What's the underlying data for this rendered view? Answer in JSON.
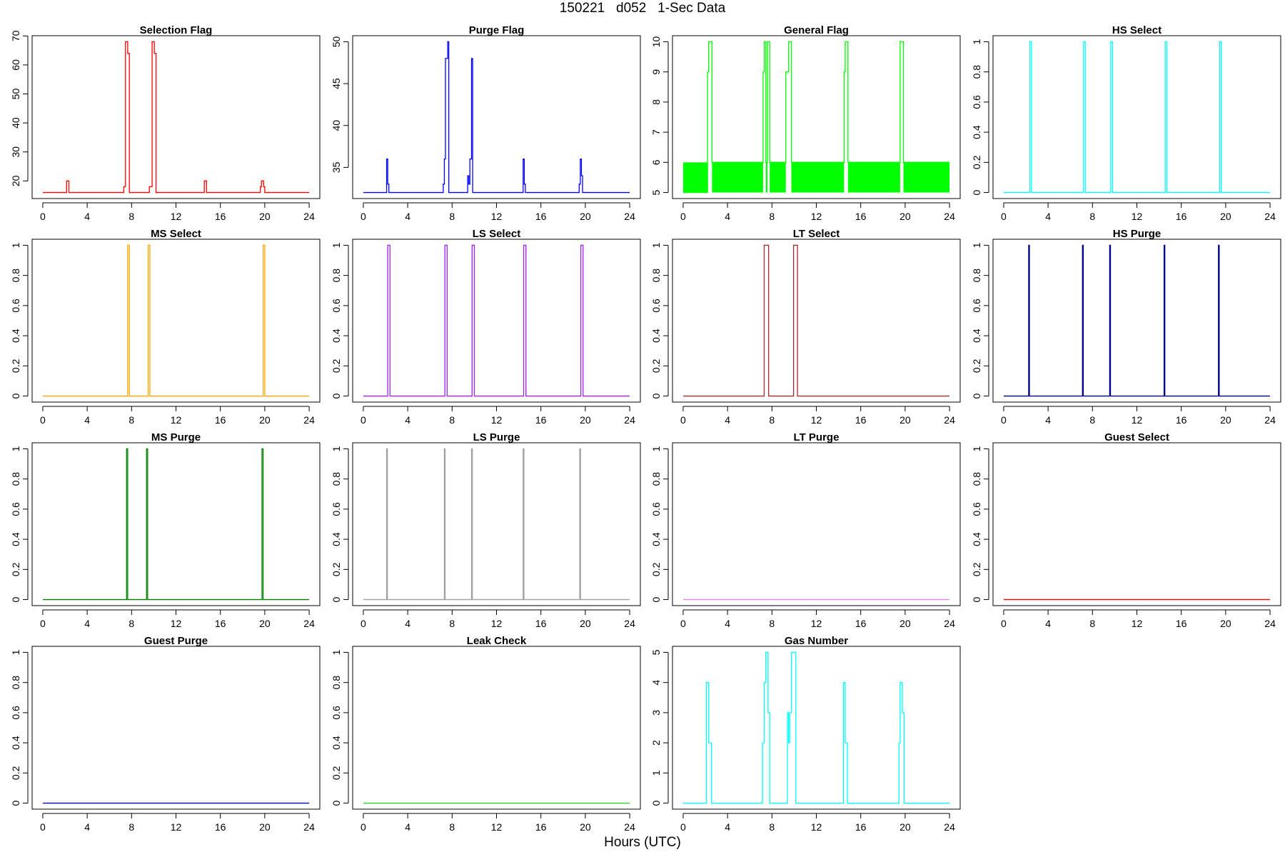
{
  "figure": {
    "title": "150221   d052   1-Sec Data",
    "xlabel": "Hours (UTC)"
  },
  "chart_data": [
    {
      "type": "line",
      "title": "Selection Flag",
      "color": "#ff0000",
      "xlim": [
        0,
        24
      ],
      "ylim": [
        16,
        68
      ],
      "xticks": [
        0,
        4,
        8,
        12,
        16,
        20,
        24
      ],
      "yticks": [
        20,
        30,
        40,
        50,
        60,
        70
      ],
      "x": [
        0,
        2.15,
        2.15,
        2.35,
        2.35,
        7.3,
        7.3,
        7.45,
        7.45,
        7.65,
        7.65,
        7.8,
        7.8,
        9.6,
        9.6,
        9.85,
        9.85,
        10.05,
        10.05,
        10.2,
        10.2,
        14.55,
        14.55,
        14.75,
        14.75,
        19.6,
        19.6,
        19.7,
        19.7,
        19.9,
        19.9,
        20.0,
        20.0,
        24
      ],
      "y": [
        16,
        16,
        20,
        20,
        16,
        16,
        18,
        18,
        68,
        68,
        64,
        64,
        16,
        16,
        18,
        18,
        68,
        68,
        64,
        64,
        16,
        16,
        20,
        20,
        16,
        16,
        18,
        18,
        20,
        20,
        18,
        18,
        16,
        16
      ]
    },
    {
      "type": "line",
      "title": "Purge Flag",
      "color": "#0000ff",
      "xlim": [
        0,
        24
      ],
      "ylim": [
        32,
        50
      ],
      "xticks": [
        0,
        4,
        8,
        12,
        16,
        20,
        24
      ],
      "yticks": [
        35,
        40,
        45,
        50
      ],
      "x": [
        0,
        2.1,
        2.1,
        2.2,
        2.2,
        2.3,
        2.3,
        7.2,
        7.2,
        7.3,
        7.3,
        7.4,
        7.4,
        7.6,
        7.6,
        7.7,
        7.7,
        9.4,
        9.4,
        9.5,
        9.5,
        9.6,
        9.6,
        9.75,
        9.75,
        9.85,
        9.85,
        10.15,
        10.15,
        14.4,
        14.4,
        14.5,
        14.5,
        14.6,
        14.6,
        19.45,
        19.45,
        19.55,
        19.55,
        19.65,
        19.65,
        19.75,
        19.75,
        24
      ],
      "y": [
        32,
        32,
        36,
        36,
        33,
        33,
        32,
        32,
        33,
        33,
        36,
        36,
        48,
        48,
        50,
        50,
        32,
        32,
        34,
        34,
        33,
        33,
        36,
        36,
        48,
        48,
        32,
        32,
        32,
        32,
        36,
        36,
        33,
        33,
        32,
        32,
        33,
        33,
        36,
        36,
        34,
        34,
        32,
        32
      ]
    },
    {
      "type": "line",
      "title": "General Flag",
      "color": "#00ff00",
      "xlim": [
        0,
        24
      ],
      "ylim": [
        5,
        10
      ],
      "xticks": [
        0,
        4,
        8,
        12,
        16,
        20,
        24
      ],
      "yticks": [
        5,
        6,
        7,
        8,
        9,
        10
      ],
      "band": {
        "low": 5,
        "high": 6,
        "gaps": [
          [
            2.2,
            2.6
          ],
          [
            7.2,
            7.45
          ],
          [
            7.6,
            7.8
          ],
          [
            9.25,
            9.75
          ],
          [
            14.5,
            14.85
          ],
          [
            19.55,
            19.85
          ]
        ]
      },
      "x": [
        0,
        2.2,
        2.2,
        2.2,
        2.3,
        2.3,
        2.6,
        2.6,
        7.2,
        7.2,
        7.3,
        7.3,
        7.45,
        7.45,
        7.6,
        7.6,
        7.8,
        7.8,
        9.25,
        9.25,
        9.5,
        9.5,
        9.75,
        9.75,
        14.5,
        14.5,
        14.6,
        14.6,
        14.85,
        14.85,
        19.55,
        19.55,
        19.85,
        19.85,
        24
      ],
      "y": [
        5,
        5,
        6,
        9,
        9,
        10,
        10,
        6,
        6,
        9,
        9,
        10,
        10,
        6,
        6,
        10,
        10,
        6,
        6,
        9,
        9,
        10,
        10,
        6,
        6,
        9,
        9,
        10,
        10,
        6,
        6,
        10,
        10,
        6,
        6
      ]
    },
    {
      "type": "line",
      "title": "HS Select",
      "color": "#00ffff",
      "xlim": [
        0,
        24
      ],
      "ylim": [
        0,
        1
      ],
      "xticks": [
        0,
        4,
        8,
        12,
        16,
        20,
        24
      ],
      "yticks": [
        0,
        0.2,
        0.4,
        0.6,
        0.8,
        1
      ],
      "x": [
        0,
        2.35,
        2.35,
        2.5,
        2.5,
        7.2,
        7.2,
        7.35,
        7.35,
        9.65,
        9.65,
        9.8,
        9.8,
        14.55,
        14.55,
        14.7,
        14.7,
        19.45,
        19.45,
        19.6,
        19.6,
        24
      ],
      "y": [
        0,
        0,
        1,
        1,
        0,
        0,
        1,
        1,
        0,
        0,
        1,
        1,
        0,
        0,
        1,
        1,
        0,
        0,
        1,
        1,
        0,
        0
      ]
    },
    {
      "type": "line",
      "title": "MS Select",
      "color": "#ffa500",
      "xlim": [
        0,
        24
      ],
      "ylim": [
        0,
        1
      ],
      "xticks": [
        0,
        4,
        8,
        12,
        16,
        20,
        24
      ],
      "yticks": [
        0,
        0.2,
        0.4,
        0.6,
        0.8,
        1
      ],
      "x": [
        0,
        7.65,
        7.65,
        7.8,
        7.8,
        9.5,
        9.5,
        9.65,
        9.65,
        19.85,
        19.85,
        20.0,
        20.0,
        24
      ],
      "y": [
        0,
        0,
        1,
        1,
        0,
        0,
        1,
        1,
        0,
        0,
        1,
        1,
        0,
        0
      ]
    },
    {
      "type": "line",
      "title": "LS Select",
      "color": "#a020f0",
      "xlim": [
        0,
        24
      ],
      "ylim": [
        0,
        1
      ],
      "xticks": [
        0,
        4,
        8,
        12,
        16,
        20,
        24
      ],
      "yticks": [
        0,
        0.2,
        0.4,
        0.6,
        0.8,
        1
      ],
      "x": [
        0,
        2.2,
        2.2,
        2.4,
        2.4,
        7.35,
        7.35,
        7.55,
        7.55,
        9.8,
        9.8,
        10.0,
        10.0,
        14.45,
        14.45,
        14.65,
        14.65,
        19.6,
        19.6,
        19.8,
        19.8,
        24
      ],
      "y": [
        0,
        0,
        1,
        1,
        0,
        0,
        1,
        1,
        0,
        0,
        1,
        1,
        0,
        0,
        1,
        1,
        0,
        0,
        1,
        1,
        0,
        0
      ]
    },
    {
      "type": "line",
      "title": "LT Select",
      "color": "#a52a2a",
      "xlim": [
        0,
        24
      ],
      "ylim": [
        0,
        1
      ],
      "xticks": [
        0,
        4,
        8,
        12,
        16,
        20,
        24
      ],
      "yticks": [
        0,
        0.2,
        0.4,
        0.6,
        0.8,
        1
      ],
      "x": [
        0,
        7.3,
        7.3,
        7.7,
        7.7,
        9.95,
        9.95,
        10.3,
        10.3,
        24
      ],
      "y": [
        0,
        0,
        1,
        1,
        0,
        0,
        1,
        1,
        0,
        0
      ]
    },
    {
      "type": "line",
      "title": "HS Purge",
      "color": "#00008b",
      "xlim": [
        0,
        24
      ],
      "ylim": [
        0,
        1
      ],
      "xticks": [
        0,
        4,
        8,
        12,
        16,
        20,
        24
      ],
      "yticks": [
        0,
        0.2,
        0.4,
        0.6,
        0.8,
        1
      ],
      "x": [
        0,
        2.25,
        2.25,
        2.32,
        2.32,
        7.1,
        7.1,
        7.17,
        7.17,
        9.55,
        9.55,
        9.62,
        9.62,
        14.45,
        14.45,
        14.52,
        14.52,
        19.35,
        19.35,
        19.42,
        19.42,
        24
      ],
      "y": [
        0,
        0,
        1,
        1,
        0,
        0,
        1,
        1,
        0,
        0,
        1,
        1,
        0,
        0,
        1,
        1,
        0,
        0,
        1,
        1,
        0,
        0
      ]
    },
    {
      "type": "line",
      "title": "MS Purge",
      "color": "#008000",
      "xlim": [
        0,
        24
      ],
      "ylim": [
        0,
        1
      ],
      "xticks": [
        0,
        4,
        8,
        12,
        16,
        20,
        24
      ],
      "yticks": [
        0,
        0.2,
        0.4,
        0.6,
        0.8,
        1
      ],
      "x": [
        0,
        7.55,
        7.55,
        7.65,
        7.65,
        9.35,
        9.35,
        9.45,
        9.45,
        19.75,
        19.75,
        19.85,
        19.85,
        24
      ],
      "y": [
        0,
        0,
        1,
        1,
        0,
        0,
        1,
        1,
        0,
        0,
        1,
        1,
        0,
        0
      ]
    },
    {
      "type": "line",
      "title": "LS Purge",
      "color": "#a0a0a0",
      "xlim": [
        0,
        24
      ],
      "ylim": [
        0,
        1
      ],
      "xticks": [
        0,
        4,
        8,
        12,
        16,
        20,
        24
      ],
      "yticks": [
        0,
        0.2,
        0.4,
        0.6,
        0.8,
        1
      ],
      "x": [
        0,
        2.1,
        2.1,
        2.17,
        2.17,
        7.3,
        7.3,
        7.37,
        7.37,
        9.75,
        9.75,
        9.82,
        9.82,
        14.4,
        14.4,
        14.47,
        14.47,
        19.5,
        19.5,
        19.57,
        19.57,
        24
      ],
      "y": [
        0,
        0,
        1,
        1,
        0,
        0,
        1,
        1,
        0,
        0,
        1,
        1,
        0,
        0,
        1,
        1,
        0,
        0,
        1,
        1,
        0,
        0
      ]
    },
    {
      "type": "line",
      "title": "LT Purge",
      "color": "#ee82ee",
      "xlim": [
        0,
        24
      ],
      "ylim": [
        0,
        1
      ],
      "xticks": [
        0,
        4,
        8,
        12,
        16,
        20,
        24
      ],
      "yticks": [
        0,
        0.2,
        0.4,
        0.6,
        0.8,
        1
      ],
      "x": [
        0,
        24
      ],
      "y": [
        0,
        0
      ]
    },
    {
      "type": "line",
      "title": "Guest Select",
      "color": "#ff0000",
      "xlim": [
        0,
        24
      ],
      "ylim": [
        0,
        1
      ],
      "xticks": [
        0,
        4,
        8,
        12,
        16,
        20,
        24
      ],
      "yticks": [
        0,
        0.2,
        0.4,
        0.6,
        0.8,
        1
      ],
      "x": [
        0,
        24
      ],
      "y": [
        0,
        0
      ]
    },
    {
      "type": "line",
      "title": "Guest Purge",
      "color": "#0000cd",
      "xlim": [
        0,
        24
      ],
      "ylim": [
        0,
        1
      ],
      "xticks": [
        0,
        4,
        8,
        12,
        16,
        20,
        24
      ],
      "yticks": [
        0,
        0.2,
        0.4,
        0.6,
        0.8,
        1
      ],
      "x": [
        0,
        24
      ],
      "y": [
        0,
        0
      ]
    },
    {
      "type": "line",
      "title": "Leak Check",
      "color": "#32cd32",
      "xlim": [
        0,
        24
      ],
      "ylim": [
        0,
        1
      ],
      "xticks": [
        0,
        4,
        8,
        12,
        16,
        20,
        24
      ],
      "yticks": [
        0,
        0.2,
        0.4,
        0.6,
        0.8,
        1
      ],
      "x": [
        0,
        24
      ],
      "y": [
        0,
        0
      ]
    },
    {
      "type": "line",
      "title": "Gas Number",
      "color": "#00ffff",
      "xlim": [
        0,
        24
      ],
      "ylim": [
        0,
        5
      ],
      "xticks": [
        0,
        4,
        8,
        12,
        16,
        20,
        24
      ],
      "yticks": [
        0,
        1,
        2,
        3,
        4,
        5
      ],
      "x": [
        0,
        2.1,
        2.1,
        2.3,
        2.3,
        2.55,
        2.55,
        7.15,
        7.15,
        7.3,
        7.3,
        7.45,
        7.45,
        7.65,
        7.65,
        7.8,
        7.8,
        9.4,
        9.4,
        9.5,
        9.5,
        9.6,
        9.6,
        9.75,
        9.75,
        9.85,
        9.85,
        10.15,
        10.15,
        14.45,
        14.45,
        14.6,
        14.6,
        14.8,
        14.8,
        19.45,
        19.45,
        19.55,
        19.55,
        19.75,
        19.75,
        19.9,
        19.9,
        24
      ],
      "y": [
        0,
        0,
        4,
        4,
        2,
        2,
        0,
        0,
        2,
        2,
        4,
        4,
        5,
        5,
        3,
        3,
        0,
        0,
        3,
        3,
        2,
        2,
        3,
        3,
        5,
        5,
        5,
        5,
        0,
        0,
        4,
        4,
        2,
        2,
        0,
        0,
        2,
        2,
        4,
        4,
        3,
        3,
        0,
        0
      ]
    }
  ]
}
